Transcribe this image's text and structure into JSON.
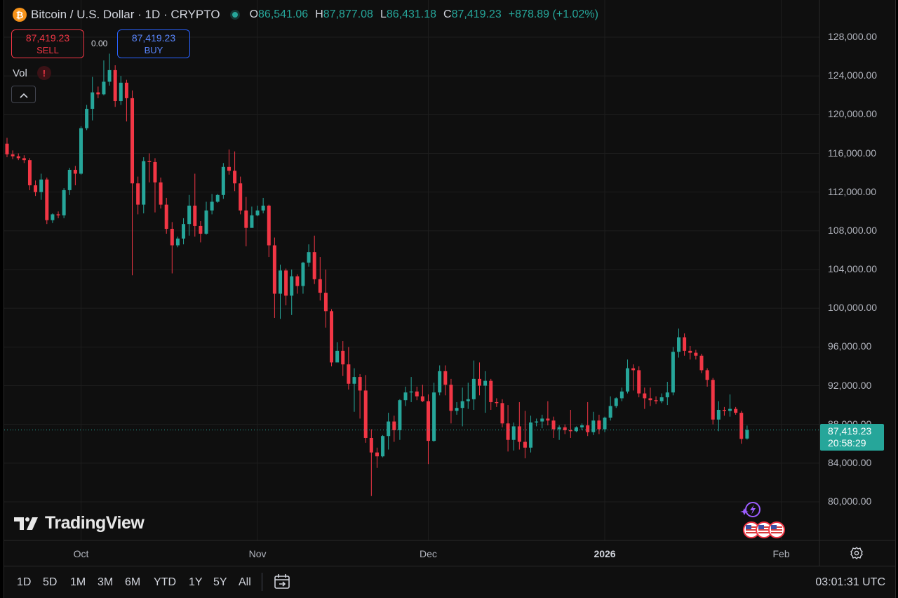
{
  "header": {
    "symbol_icon": "₿",
    "title": "Bitcoin / U.S. Dollar · 1D · CRYPTO",
    "open_label": "O",
    "open": "86,541.06",
    "high_label": "H",
    "high": "87,877.08",
    "low_label": "L",
    "low": "86,431.18",
    "close_label": "C",
    "close": "87,419.23",
    "change": "+878.89 (+1.02%)"
  },
  "trade": {
    "sell_price": "87,419.23",
    "sell_label": "SELL",
    "spread": "0.00",
    "buy_price": "87,419.23",
    "buy_label": "BUY"
  },
  "indicators": {
    "vol_label": "Vol",
    "warning_icon": "!",
    "collapse_icon": "^"
  },
  "branding": {
    "logo_text": "TradingView"
  },
  "price_axis": {
    "labels": [
      "128,000.00",
      "124,000.00",
      "120,000.00",
      "116,000.00",
      "112,000.00",
      "108,000.00",
      "104,000.00",
      "100,000.00",
      "96,000.00",
      "92,000.00",
      "88,000.00",
      "84,000.00",
      "80,000.00"
    ],
    "last_price": "87,419.23",
    "countdown": "20:58:29"
  },
  "time_axis": {
    "labels": [
      {
        "text": "Oct",
        "bold": false
      },
      {
        "text": "Nov",
        "bold": false
      },
      {
        "text": "Dec",
        "bold": false
      },
      {
        "text": "2026",
        "bold": true
      },
      {
        "text": "Feb",
        "bold": false
      }
    ]
  },
  "toolbar": {
    "ranges": [
      "1D",
      "5D",
      "1M",
      "3M",
      "6M",
      "YTD",
      "1Y",
      "5Y",
      "All"
    ],
    "clock": "03:01:31 UTC"
  },
  "colors": {
    "up": "#26a69a",
    "down": "#f23645",
    "background": "#0f0f0f",
    "grid": "#1e1e1e"
  },
  "chart_data": {
    "type": "candlestick",
    "y_unit": "USD",
    "ylim": [
      77000,
      130000
    ],
    "x_range": [
      "2025-09-18",
      "2026-01-27"
    ],
    "candles": [
      {
        "date": "2025-09-18",
        "o": 117000,
        "h": 117600,
        "c": 115900,
        "l": 115600
      },
      {
        "date": "2025-09-19",
        "o": 115900,
        "h": 116300,
        "c": 115700,
        "l": 115400
      },
      {
        "date": "2025-09-20",
        "o": 115700,
        "h": 116000,
        "c": 115500,
        "l": 115300
      },
      {
        "date": "2025-09-21",
        "o": 115500,
        "h": 115800,
        "c": 115300,
        "l": 115000
      },
      {
        "date": "2025-09-22",
        "o": 115300,
        "h": 115500,
        "c": 112700,
        "l": 112200
      },
      {
        "date": "2025-09-23",
        "o": 112700,
        "h": 113200,
        "c": 112000,
        "l": 111600
      },
      {
        "date": "2025-09-24",
        "o": 112000,
        "h": 113900,
        "c": 113300,
        "l": 111200
      },
      {
        "date": "2025-09-25",
        "o": 113300,
        "h": 113500,
        "c": 109100,
        "l": 108700
      },
      {
        "date": "2025-09-26",
        "o": 109100,
        "h": 109800,
        "c": 109700,
        "l": 108800
      },
      {
        "date": "2025-09-27",
        "o": 109700,
        "h": 110000,
        "c": 109600,
        "l": 109300
      },
      {
        "date": "2025-09-28",
        "o": 109600,
        "h": 112400,
        "c": 112200,
        "l": 109300
      },
      {
        "date": "2025-09-29",
        "o": 112200,
        "h": 114500,
        "c": 114300,
        "l": 111700
      },
      {
        "date": "2025-09-30",
        "o": 114300,
        "h": 114700,
        "c": 113900,
        "l": 112700
      },
      {
        "date": "2025-10-01",
        "o": 113900,
        "h": 118800,
        "c": 118600,
        "l": 113800
      },
      {
        "date": "2025-10-02",
        "o": 118600,
        "h": 121000,
        "c": 120600,
        "l": 118400
      },
      {
        "date": "2025-10-03",
        "o": 120600,
        "h": 123900,
        "c": 122300,
        "l": 119400
      },
      {
        "date": "2025-10-04",
        "o": 122300,
        "h": 122900,
        "c": 122100,
        "l": 121700
      },
      {
        "date": "2025-10-05",
        "o": 122100,
        "h": 125600,
        "c": 123400,
        "l": 122000
      },
      {
        "date": "2025-10-06",
        "o": 123400,
        "h": 126300,
        "c": 124600,
        "l": 123000
      },
      {
        "date": "2025-10-07",
        "o": 124600,
        "h": 125100,
        "c": 121400,
        "l": 120800
      },
      {
        "date": "2025-10-08",
        "o": 121400,
        "h": 124000,
        "c": 123300,
        "l": 121000
      },
      {
        "date": "2025-10-09",
        "o": 123300,
        "h": 123600,
        "c": 121700,
        "l": 119300
      },
      {
        "date": "2025-10-10",
        "o": 121700,
        "h": 122500,
        "c": 112900,
        "l": 103400
      },
      {
        "date": "2025-10-11",
        "o": 112900,
        "h": 113600,
        "c": 110700,
        "l": 109700
      },
      {
        "date": "2025-10-12",
        "o": 110700,
        "h": 115600,
        "c": 115200,
        "l": 109800
      },
      {
        "date": "2025-10-13",
        "o": 115200,
        "h": 116000,
        "c": 115100,
        "l": 113000
      },
      {
        "date": "2025-10-14",
        "o": 115100,
        "h": 115500,
        "c": 113000,
        "l": 109900
      },
      {
        "date": "2025-10-15",
        "o": 113000,
        "h": 113500,
        "c": 110700,
        "l": 110300
      },
      {
        "date": "2025-10-16",
        "o": 110700,
        "h": 111400,
        "c": 108200,
        "l": 107700
      },
      {
        "date": "2025-10-17",
        "o": 108200,
        "h": 108900,
        "c": 106500,
        "l": 103600
      },
      {
        "date": "2025-10-18",
        "o": 106500,
        "h": 107400,
        "c": 107200,
        "l": 106300
      },
      {
        "date": "2025-10-19",
        "o": 107200,
        "h": 109300,
        "c": 108700,
        "l": 106600
      },
      {
        "date": "2025-10-20",
        "o": 108700,
        "h": 111700,
        "c": 110600,
        "l": 107500
      },
      {
        "date": "2025-10-21",
        "o": 110600,
        "h": 113900,
        "c": 108500,
        "l": 107400
      },
      {
        "date": "2025-10-22",
        "o": 108500,
        "h": 109000,
        "c": 107700,
        "l": 106800
      },
      {
        "date": "2025-10-23",
        "o": 107700,
        "h": 111000,
        "c": 110100,
        "l": 107600
      },
      {
        "date": "2025-10-24",
        "o": 110100,
        "h": 111800,
        "c": 111000,
        "l": 109700
      },
      {
        "date": "2025-10-25",
        "o": 111000,
        "h": 111800,
        "c": 111700,
        "l": 110900
      },
      {
        "date": "2025-10-26",
        "o": 111700,
        "h": 115000,
        "c": 114600,
        "l": 111300
      },
      {
        "date": "2025-10-27",
        "o": 114600,
        "h": 116400,
        "c": 114200,
        "l": 113800
      },
      {
        "date": "2025-10-28",
        "o": 114200,
        "h": 116200,
        "c": 112900,
        "l": 112100
      },
      {
        "date": "2025-10-29",
        "o": 112900,
        "h": 113600,
        "c": 110100,
        "l": 109700
      },
      {
        "date": "2025-10-30",
        "o": 110100,
        "h": 111500,
        "c": 108300,
        "l": 106400
      },
      {
        "date": "2025-10-31",
        "o": 108300,
        "h": 110500,
        "c": 109600,
        "l": 108400
      },
      {
        "date": "2025-11-01",
        "o": 109600,
        "h": 110600,
        "c": 110100,
        "l": 109500
      },
      {
        "date": "2025-11-02",
        "o": 110100,
        "h": 111400,
        "c": 110600,
        "l": 109800
      },
      {
        "date": "2025-11-03",
        "o": 110600,
        "h": 110700,
        "c": 106500,
        "l": 105300
      },
      {
        "date": "2025-11-04",
        "o": 106500,
        "h": 107300,
        "c": 101500,
        "l": 99000
      },
      {
        "date": "2025-11-05",
        "o": 101500,
        "h": 104500,
        "c": 103900,
        "l": 98900
      },
      {
        "date": "2025-11-06",
        "o": 103900,
        "h": 104100,
        "c": 101300,
        "l": 100300
      },
      {
        "date": "2025-11-07",
        "o": 101300,
        "h": 104000,
        "c": 103300,
        "l": 99300
      },
      {
        "date": "2025-11-08",
        "o": 103300,
        "h": 103500,
        "c": 102300,
        "l": 101500
      },
      {
        "date": "2025-11-09",
        "o": 102300,
        "h": 104800,
        "c": 104700,
        "l": 101500
      },
      {
        "date": "2025-11-10",
        "o": 104700,
        "h": 106600,
        "c": 105800,
        "l": 104300
      },
      {
        "date": "2025-11-11",
        "o": 105800,
        "h": 107500,
        "c": 103000,
        "l": 102500
      },
      {
        "date": "2025-11-12",
        "o": 103000,
        "h": 105300,
        "c": 101600,
        "l": 100800
      },
      {
        "date": "2025-11-13",
        "o": 101600,
        "h": 104000,
        "c": 99700,
        "l": 98000
      },
      {
        "date": "2025-11-14",
        "o": 99700,
        "h": 99900,
        "c": 94400,
        "l": 94000
      },
      {
        "date": "2025-11-15",
        "o": 94400,
        "h": 96500,
        "c": 95600,
        "l": 94600
      },
      {
        "date": "2025-11-16",
        "o": 95600,
        "h": 96600,
        "c": 94200,
        "l": 93000
      },
      {
        "date": "2025-11-17",
        "o": 94200,
        "h": 96000,
        "c": 92200,
        "l": 91600
      },
      {
        "date": "2025-11-18",
        "o": 92200,
        "h": 93800,
        "c": 92900,
        "l": 89300
      },
      {
        "date": "2025-11-19",
        "o": 92900,
        "h": 93200,
        "c": 91500,
        "l": 88600
      },
      {
        "date": "2025-11-20",
        "o": 91500,
        "h": 93100,
        "c": 86600,
        "l": 86100
      },
      {
        "date": "2025-11-21",
        "o": 86600,
        "h": 87500,
        "c": 85100,
        "l": 80600
      },
      {
        "date": "2025-11-22",
        "o": 85100,
        "h": 85600,
        "c": 84700,
        "l": 83500
      },
      {
        "date": "2025-11-23",
        "o": 84700,
        "h": 86900,
        "c": 86800,
        "l": 84600
      },
      {
        "date": "2025-11-24",
        "o": 86800,
        "h": 89200,
        "c": 88300,
        "l": 85400
      },
      {
        "date": "2025-11-25",
        "o": 88300,
        "h": 88900,
        "c": 87400,
        "l": 86200
      },
      {
        "date": "2025-11-26",
        "o": 87400,
        "h": 90600,
        "c": 90500,
        "l": 86400
      },
      {
        "date": "2025-11-27",
        "o": 90500,
        "h": 91900,
        "c": 91300,
        "l": 89900
      },
      {
        "date": "2025-11-28",
        "o": 91300,
        "h": 92900,
        "c": 91400,
        "l": 90300
      },
      {
        "date": "2025-11-29",
        "o": 91400,
        "h": 91900,
        "c": 90900,
        "l": 90500
      },
      {
        "date": "2025-11-30",
        "o": 90900,
        "h": 92100,
        "c": 90400,
        "l": 90300
      },
      {
        "date": "2025-12-01",
        "o": 90400,
        "h": 91100,
        "c": 86300,
        "l": 83900
      },
      {
        "date": "2025-12-02",
        "o": 86300,
        "h": 92300,
        "c": 91300,
        "l": 86200
      },
      {
        "date": "2025-12-03",
        "o": 91300,
        "h": 94100,
        "c": 93500,
        "l": 91000
      },
      {
        "date": "2025-12-04",
        "o": 93500,
        "h": 94100,
        "c": 92100,
        "l": 91000
      },
      {
        "date": "2025-12-05",
        "o": 92100,
        "h": 92700,
        "c": 89400,
        "l": 88100
      },
      {
        "date": "2025-12-06",
        "o": 89400,
        "h": 90300,
        "c": 89700,
        "l": 89000
      },
      {
        "date": "2025-12-07",
        "o": 89700,
        "h": 91800,
        "c": 90400,
        "l": 87800
      },
      {
        "date": "2025-12-08",
        "o": 90400,
        "h": 92300,
        "c": 90600,
        "l": 89600
      },
      {
        "date": "2025-12-09",
        "o": 90600,
        "h": 94600,
        "c": 92700,
        "l": 89500
      },
      {
        "date": "2025-12-10",
        "o": 92700,
        "h": 94400,
        "c": 92000,
        "l": 91000
      },
      {
        "date": "2025-12-11",
        "o": 92000,
        "h": 93500,
        "c": 92500,
        "l": 89200
      },
      {
        "date": "2025-12-12",
        "o": 92500,
        "h": 92700,
        "c": 90300,
        "l": 89500
      },
      {
        "date": "2025-12-13",
        "o": 90300,
        "h": 90700,
        "c": 90200,
        "l": 89800
      },
      {
        "date": "2025-12-14",
        "o": 90200,
        "h": 90600,
        "c": 88100,
        "l": 87700
      },
      {
        "date": "2025-12-15",
        "o": 88100,
        "h": 90000,
        "c": 86400,
        "l": 85200
      },
      {
        "date": "2025-12-16",
        "o": 86400,
        "h": 88200,
        "c": 87800,
        "l": 85300
      },
      {
        "date": "2025-12-17",
        "o": 87800,
        "h": 90300,
        "c": 86200,
        "l": 85400
      },
      {
        "date": "2025-12-18",
        "o": 86200,
        "h": 89400,
        "c": 85600,
        "l": 84500
      },
      {
        "date": "2025-12-19",
        "o": 85600,
        "h": 88900,
        "c": 88200,
        "l": 85100
      },
      {
        "date": "2025-12-20",
        "o": 88200,
        "h": 88600,
        "c": 88300,
        "l": 87800
      },
      {
        "date": "2025-12-21",
        "o": 88300,
        "h": 89000,
        "c": 88600,
        "l": 87600
      },
      {
        "date": "2025-12-22",
        "o": 88600,
        "h": 90400,
        "c": 88400,
        "l": 87900
      },
      {
        "date": "2025-12-23",
        "o": 88400,
        "h": 88800,
        "c": 87500,
        "l": 86600
      },
      {
        "date": "2025-12-24",
        "o": 87500,
        "h": 87900,
        "c": 87700,
        "l": 86400
      },
      {
        "date": "2025-12-25",
        "o": 87700,
        "h": 88000,
        "c": 87400,
        "l": 87000
      },
      {
        "date": "2025-12-26",
        "o": 87400,
        "h": 89500,
        "c": 87300,
        "l": 86600
      },
      {
        "date": "2025-12-27",
        "o": 87300,
        "h": 87800,
        "c": 87700,
        "l": 87200
      },
      {
        "date": "2025-12-28",
        "o": 87700,
        "h": 88100,
        "c": 87900,
        "l": 87400
      },
      {
        "date": "2025-12-29",
        "o": 87900,
        "h": 90300,
        "c": 87200,
        "l": 86800
      },
      {
        "date": "2025-12-30",
        "o": 87200,
        "h": 89300,
        "c": 88400,
        "l": 86900
      },
      {
        "date": "2025-12-31",
        "o": 88400,
        "h": 89000,
        "c": 87500,
        "l": 87000
      },
      {
        "date": "2026-01-01",
        "o": 87500,
        "h": 88800,
        "c": 88700,
        "l": 87200
      },
      {
        "date": "2026-01-02",
        "o": 88700,
        "h": 90900,
        "c": 89900,
        "l": 88400
      },
      {
        "date": "2026-01-03",
        "o": 89900,
        "h": 90800,
        "c": 90700,
        "l": 89700
      },
      {
        "date": "2026-01-04",
        "o": 90700,
        "h": 91800,
        "c": 91400,
        "l": 90400
      },
      {
        "date": "2026-01-05",
        "o": 91400,
        "h": 94700,
        "c": 93800,
        "l": 91200
      },
      {
        "date": "2026-01-06",
        "o": 93800,
        "h": 94200,
        "c": 93600,
        "l": 91500
      },
      {
        "date": "2026-01-07",
        "o": 93600,
        "h": 94000,
        "c": 91200,
        "l": 90800
      },
      {
        "date": "2026-01-08",
        "o": 91200,
        "h": 91800,
        "c": 90700,
        "l": 89600
      },
      {
        "date": "2026-01-09",
        "o": 90700,
        "h": 91800,
        "c": 90500,
        "l": 89900
      },
      {
        "date": "2026-01-10",
        "o": 90500,
        "h": 90900,
        "c": 90400,
        "l": 90100
      },
      {
        "date": "2026-01-11",
        "o": 90400,
        "h": 91200,
        "c": 90800,
        "l": 90200
      },
      {
        "date": "2026-01-12",
        "o": 90800,
        "h": 92400,
        "c": 91300,
        "l": 90000
      },
      {
        "date": "2026-01-13",
        "o": 91300,
        "h": 96000,
        "c": 95500,
        "l": 91000
      },
      {
        "date": "2026-01-14",
        "o": 95500,
        "h": 97900,
        "c": 97000,
        "l": 94900
      },
      {
        "date": "2026-01-15",
        "o": 97000,
        "h": 97400,
        "c": 95600,
        "l": 95100
      },
      {
        "date": "2026-01-16",
        "o": 95600,
        "h": 96100,
        "c": 95400,
        "l": 94700
      },
      {
        "date": "2026-01-17",
        "o": 95400,
        "h": 95700,
        "c": 95100,
        "l": 94700
      },
      {
        "date": "2026-01-18",
        "o": 95100,
        "h": 95300,
        "c": 93600,
        "l": 93300
      },
      {
        "date": "2026-01-19",
        "o": 93600,
        "h": 93800,
        "c": 92600,
        "l": 91900
      },
      {
        "date": "2026-01-20",
        "o": 92600,
        "h": 92800,
        "c": 88500,
        "l": 88000
      },
      {
        "date": "2026-01-21",
        "o": 88500,
        "h": 90400,
        "c": 89500,
        "l": 87300
      },
      {
        "date": "2026-01-22",
        "o": 89500,
        "h": 89800,
        "c": 89400,
        "l": 88900
      },
      {
        "date": "2026-01-23",
        "o": 89400,
        "h": 91100,
        "c": 89600,
        "l": 88800
      },
      {
        "date": "2026-01-24",
        "o": 89600,
        "h": 89800,
        "c": 89200,
        "l": 89000
      },
      {
        "date": "2026-01-25",
        "o": 89200,
        "h": 89400,
        "c": 86500,
        "l": 86000
      },
      {
        "date": "2026-01-26",
        "o": 86540,
        "h": 87880,
        "c": 87420,
        "l": 86430
      }
    ]
  }
}
